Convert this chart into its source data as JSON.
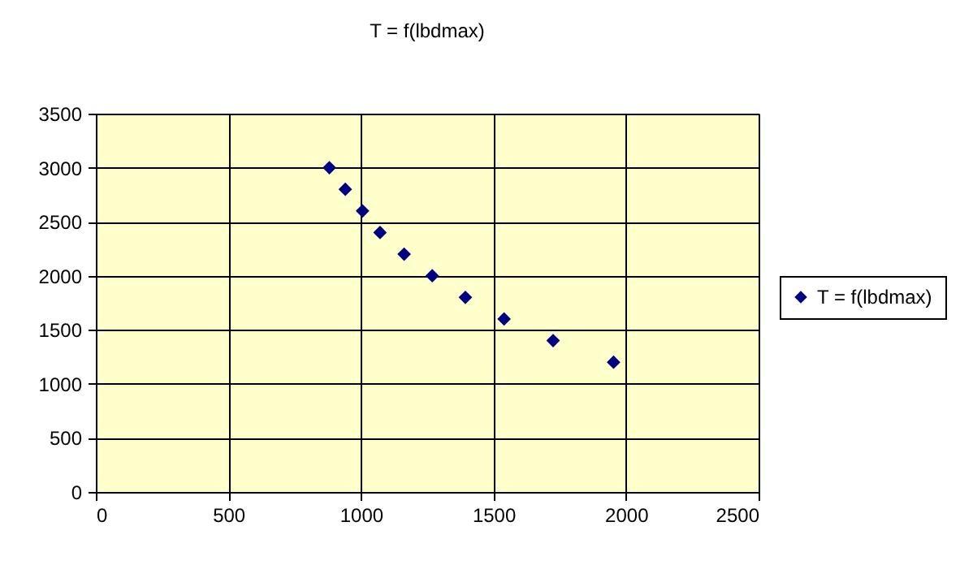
{
  "chart_data": {
    "type": "scatter",
    "title": "T = f(lbdmax)",
    "series": [
      {
        "name": "T = f(lbdmax)",
        "color": "#000080",
        "x": [
          881,
          941,
          1006,
          1072,
          1163,
          1269,
          1394,
          1540,
          1725,
          1953
        ],
        "values": [
          3000,
          2800,
          2600,
          2400,
          2200,
          2000,
          1800,
          1600,
          1400,
          1200
        ]
      }
    ],
    "xlim": [
      0,
      2500
    ],
    "xticks": [
      0,
      500,
      1000,
      1500,
      2000,
      2500
    ],
    "ylim": [
      0,
      3500
    ],
    "yticks": [
      0,
      500,
      1000,
      1500,
      2000,
      2500,
      3000,
      3500
    ],
    "grid": true,
    "legend": "right",
    "marker": "diamond"
  }
}
